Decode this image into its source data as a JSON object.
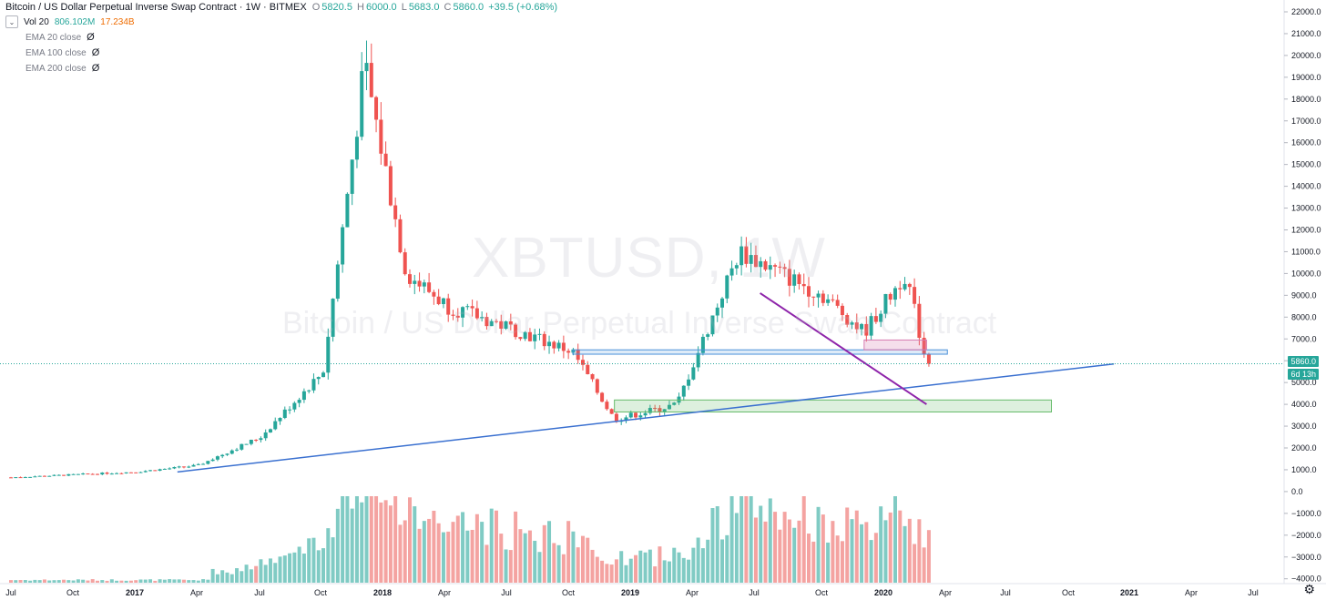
{
  "header": {
    "title": "Bitcoin / US Dollar Perpetual Inverse Swap Contract · 1W · BITMEX",
    "open_label": "O",
    "open": "5820.5",
    "high_label": "H",
    "high": "6000.0",
    "low_label": "L",
    "low": "5683.0",
    "close_label": "C",
    "close": "5860.0",
    "change": "+39.5 (+0.68%)"
  },
  "indicators": {
    "vol_label": "Vol 20",
    "vol_value_a": "806.102M",
    "vol_value_b": "17.234B",
    "ema20": "EMA 20 close",
    "ema100": "EMA 100 close",
    "ema200": "EMA 200 close"
  },
  "watermark": {
    "symbol": "XBTUSD, 1W",
    "name": "Bitcoin / US Dollar Perpetual Inverse Swap Contract"
  },
  "price_tags": {
    "last_price": "5860.0",
    "countdown": "6d 13h"
  },
  "colors": {
    "up": "#26a69a",
    "down": "#ef5350",
    "vol_up": "#80cbc4",
    "vol_down": "#f4a3a1",
    "trendline": "#3a70d0",
    "downtrend": "#8e24aa",
    "support_zone": "#66bb6a",
    "resistance_zone": "#4a90d9",
    "pink_zone": "#d67bb0"
  },
  "chart_data": {
    "type": "candlestick",
    "symbol": "XBTUSD",
    "interval": "1W",
    "y_axis_labels": [
      "22000.0",
      "21000.0",
      "20000.0",
      "19000.0",
      "18000.0",
      "17000.0",
      "16000.0",
      "15000.0",
      "14000.0",
      "13000.0",
      "12000.0",
      "11000.0",
      "10000.0",
      "9000.0",
      "8000.0",
      "7000.0",
      "6000.0",
      "5000.0",
      "4000.0",
      "3000.0",
      "2000.0",
      "1000.0",
      "0.0",
      "−1000.0",
      "−2000.0",
      "−3000.0",
      "−4000.0"
    ],
    "x_axis_labels": [
      "Jul",
      "Oct",
      "2017",
      "Apr",
      "Jul",
      "Oct",
      "2018",
      "Apr",
      "Jul",
      "Oct",
      "2019",
      "Apr",
      "Jul",
      "Oct",
      "2020",
      "Apr",
      "Jul",
      "Oct",
      "2021",
      "Apr",
      "Jul"
    ],
    "price_anchor_points": [
      {
        "date": "2016-07",
        "close": 650
      },
      {
        "date": "2017-01",
        "close": 900
      },
      {
        "date": "2017-04",
        "close": 1200
      },
      {
        "date": "2017-07",
        "close": 2500
      },
      {
        "date": "2017-10",
        "close": 5500
      },
      {
        "date": "2017-12",
        "close": 19500
      },
      {
        "date": "2018-02",
        "close": 10000
      },
      {
        "date": "2018-04",
        "close": 8500
      },
      {
        "date": "2018-07",
        "close": 7500
      },
      {
        "date": "2018-10",
        "close": 6400
      },
      {
        "date": "2018-12",
        "close": 3300
      },
      {
        "date": "2019-03",
        "close": 4000
      },
      {
        "date": "2019-06",
        "close": 11000
      },
      {
        "date": "2019-07",
        "close": 10500
      },
      {
        "date": "2019-10",
        "close": 9000
      },
      {
        "date": "2019-12",
        "close": 7300
      },
      {
        "date": "2020-02",
        "close": 10000
      },
      {
        "date": "2020-03",
        "close": 5860
      }
    ],
    "drawings": {
      "long_trendline": {
        "from": {
          "date": "2017-03",
          "price": 900
        },
        "to": {
          "date": "2020-12",
          "price": 5850
        }
      },
      "downtrend_line": {
        "from": {
          "date": "2019-07",
          "price": 9100
        },
        "to": {
          "date": "2020-03",
          "price": 4000
        }
      },
      "support_zone": {
        "from": "2018-12",
        "to": "2020-09",
        "top": 4200,
        "bottom": 3650
      },
      "resistance_zone": {
        "from": "2018-10",
        "to": "2020-04",
        "top": 6500,
        "bottom": 6300
      },
      "pink_zone": {
        "from": "2019-12",
        "to": "2020-03",
        "top": 6950,
        "bottom": 6500
      }
    },
    "last_price": 5860.0
  }
}
